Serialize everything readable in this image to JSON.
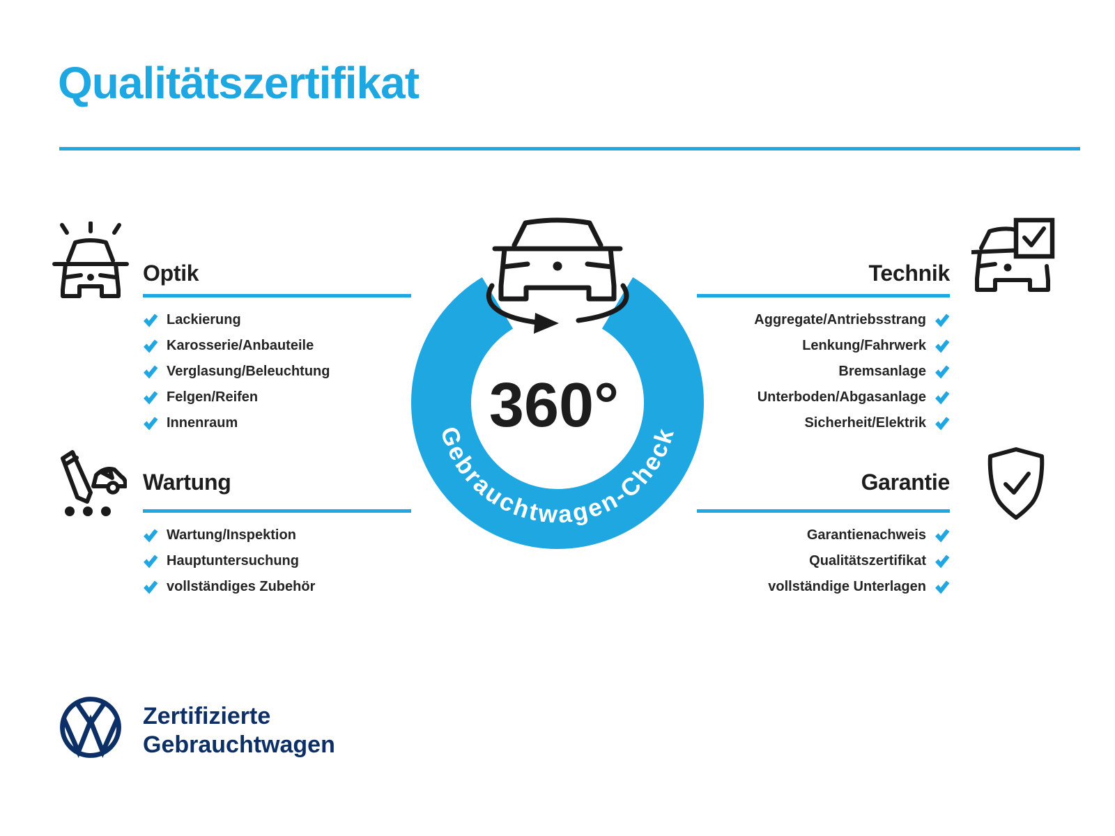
{
  "colors": {
    "accent": "#1ea7e1",
    "navy": "#0c2f66",
    "text": "#242424"
  },
  "title": "Qualitätszertifikat",
  "badge": {
    "degrees": "360°",
    "ring_text": "Gebrauchtwagen-Check",
    "icon": "rotating-car-icon"
  },
  "sections": {
    "optik": {
      "title": "Optik",
      "icon": "car-front-shine-icon",
      "items": [
        "Lackierung",
        "Karosserie/Anbauteile",
        "Verglasung/Beleuchtung",
        "Felgen/Reifen",
        "Innenraum"
      ]
    },
    "technik": {
      "title": "Technik",
      "icon": "car-checkbox-icon",
      "items": [
        "Aggregate/Antriebsstrang",
        "Lenkung/Fahrwerk",
        "Bremsanlage",
        "Unterboden/Abgasanlage",
        "Sicherheit/Elektrik"
      ]
    },
    "wartung": {
      "title": "Wartung",
      "icon": "pencil-car-checklist-icon",
      "items": [
        "Wartung/Inspektion",
        "Hauptuntersuchung",
        "vollständiges Zubehör"
      ]
    },
    "garantie": {
      "title": "Garantie",
      "icon": "shield-check-icon",
      "items": [
        "Garantienachweis",
        "Qualitätszertifikat",
        "vollständige Unterlagen"
      ]
    }
  },
  "footer": {
    "logo": "vw-logo",
    "brand_line1": "Zertifizierte",
    "brand_line2": "Gebrauchtwagen"
  }
}
